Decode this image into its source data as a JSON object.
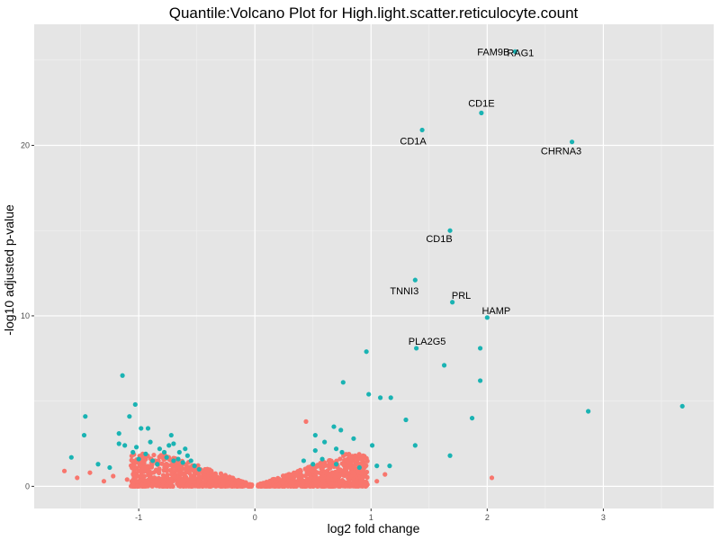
{
  "chart_data": {
    "type": "scatter",
    "title": "Quantile:Volcano Plot for High.light.scatter.reticulocyte.count",
    "xlabel": "log2 fold change",
    "ylabel": "-log10 adjusted p-value",
    "xlim": [
      -1.9,
      3.95
    ],
    "ylim": [
      -1.3,
      27.1
    ],
    "x_ticks": [
      -1,
      0,
      1,
      2,
      3
    ],
    "y_ticks": [
      0,
      10,
      20
    ],
    "grid": true,
    "legend": "none",
    "colors": {
      "significant": "#1ab3b3",
      "not_significant": "#f8766d",
      "panel": "#e5e5e5",
      "grid": "#ffffff"
    },
    "labeled_points": [
      {
        "gene": "FAM9B",
        "x": 2.24,
        "y": 25.5,
        "label_dx": -24,
        "label_dy": 4
      },
      {
        "gene": "RAG1",
        "x": 2.24,
        "y": 25.5,
        "label_dx": 6,
        "label_dy": 5
      },
      {
        "gene": "CD1E",
        "x": 1.95,
        "y": 21.9,
        "label_dx": 0,
        "label_dy": -7
      },
      {
        "gene": "CD1A",
        "x": 1.44,
        "y": 20.9,
        "label_dx": -10,
        "label_dy": 16
      },
      {
        "gene": "CHRNA3",
        "x": 2.73,
        "y": 20.2,
        "label_dx": -12,
        "label_dy": 14
      },
      {
        "gene": "CD1B",
        "x": 1.68,
        "y": 15.0,
        "label_dx": -12,
        "label_dy": 13
      },
      {
        "gene": "TNNI3",
        "x": 1.38,
        "y": 12.1,
        "label_dx": -12,
        "label_dy": 16
      },
      {
        "gene": "PRL",
        "x": 1.7,
        "y": 10.8,
        "label_dx": 10,
        "label_dy": -4
      },
      {
        "gene": "HAMP",
        "x": 2.0,
        "y": 9.9,
        "label_dx": 10,
        "label_dy": -4
      },
      {
        "gene": "PLA2G5",
        "x": 1.39,
        "y": 8.1,
        "label_dx": 12,
        "label_dy": -4
      }
    ],
    "significant_points": [
      [
        1.94,
        8.1
      ],
      [
        0.96,
        7.9
      ],
      [
        1.63,
        7.1
      ],
      [
        1.94,
        6.2
      ],
      [
        0.76,
        6.1
      ],
      [
        0.98,
        5.4
      ],
      [
        1.08,
        5.2
      ],
      [
        1.17,
        5.2
      ],
      [
        3.68,
        4.7
      ],
      [
        2.87,
        4.4
      ],
      [
        1.87,
        4.0
      ],
      [
        1.3,
        3.9
      ],
      [
        1.38,
        2.4
      ],
      [
        1.68,
        1.8
      ],
      [
        1.01,
        2.4
      ],
      [
        0.68,
        3.5
      ],
      [
        0.74,
        3.3
      ],
      [
        0.52,
        3.0
      ],
      [
        0.6,
        2.6
      ],
      [
        0.52,
        2.1
      ],
      [
        0.7,
        2.2
      ],
      [
        0.85,
        2.8
      ],
      [
        0.58,
        1.6
      ],
      [
        0.7,
        1.3
      ],
      [
        0.5,
        1.3
      ],
      [
        0.9,
        1.1
      ],
      [
        1.05,
        1.2
      ],
      [
        1.16,
        1.2
      ],
      [
        0.42,
        1.5
      ],
      [
        0.75,
        2.0
      ],
      [
        -1.14,
        6.5
      ],
      [
        -1.03,
        4.8
      ],
      [
        -1.08,
        4.1
      ],
      [
        -1.46,
        4.1
      ],
      [
        -1.47,
        3.0
      ],
      [
        -1.58,
        1.7
      ],
      [
        -1.17,
        3.1
      ],
      [
        -1.17,
        2.5
      ],
      [
        -1.12,
        2.4
      ],
      [
        -1.05,
        2.0
      ],
      [
        -0.98,
        3.4
      ],
      [
        -0.92,
        3.4
      ],
      [
        -0.9,
        2.6
      ],
      [
        -0.82,
        2.2
      ],
      [
        -0.78,
        2.0
      ],
      [
        -0.76,
        1.7
      ],
      [
        -0.74,
        2.4
      ],
      [
        -0.7,
        1.5
      ],
      [
        -0.66,
        1.6
      ],
      [
        -0.62,
        1.4
      ],
      [
        -0.58,
        1.8
      ],
      [
        -0.52,
        1.2
      ],
      [
        -0.72,
        3.0
      ],
      [
        -0.65,
        2.0
      ],
      [
        -0.55,
        1.5
      ],
      [
        -0.88,
        1.5
      ],
      [
        -0.94,
        1.9
      ],
      [
        -1.0,
        1.6
      ],
      [
        -1.02,
        2.3
      ],
      [
        -1.25,
        1.1
      ],
      [
        -1.35,
        1.3
      ],
      [
        -0.6,
        2.2
      ],
      [
        -0.84,
        1.3
      ],
      [
        -0.48,
        1.0
      ],
      [
        -0.7,
        2.5
      ]
    ],
    "not_significant_points": [
      [
        0.44,
        3.8
      ],
      [
        2.04,
        0.5
      ],
      [
        -1.64,
        0.9
      ],
      [
        -1.53,
        0.5
      ],
      [
        -1.42,
        0.8
      ],
      [
        -1.3,
        0.3
      ],
      [
        -1.22,
        0.6
      ],
      [
        -1.1,
        0.4
      ],
      [
        -1.0,
        0.9
      ],
      [
        0.95,
        0.6
      ],
      [
        1.05,
        0.3
      ],
      [
        1.12,
        0.7
      ],
      [
        0.85,
        0.4
      ]
    ]
  }
}
